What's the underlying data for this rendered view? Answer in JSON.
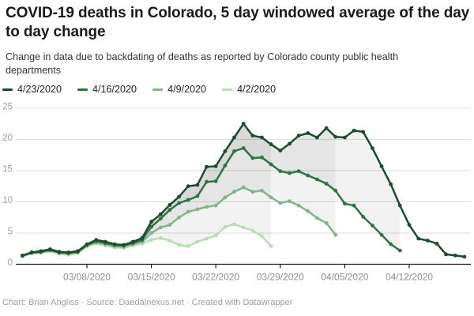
{
  "header": {
    "title": "COVID-19 deaths in Colorado, 5 day windowed average of the day to day change",
    "subtitle": "Change in data due to backdating of deaths as reported by Colorado county public health departments"
  },
  "footer": {
    "credit": "Chart: Brian Angliss · Source: Daedalnexus.net · Created with Datawrapper"
  },
  "chart_data": {
    "type": "line",
    "title": "COVID-19 deaths in Colorado, 5 day windowed average of the day to day change",
    "x_start_date": "03/01/2020",
    "x_step_days": 1,
    "x_ticks": [
      {
        "label": "03/08/2020",
        "day_index": 7
      },
      {
        "label": "03/15/2020",
        "day_index": 14
      },
      {
        "label": "03/22/2020",
        "day_index": 21
      },
      {
        "label": "03/29/2020",
        "day_index": 28
      },
      {
        "label": "04/05/2020",
        "day_index": 35
      },
      {
        "label": "04/12/2020",
        "day_index": 42
      }
    ],
    "y_ticks": [
      0,
      5,
      10,
      15,
      20,
      25
    ],
    "ylim": [
      0,
      25
    ],
    "grid": true,
    "legend_position": "top",
    "band_fill": "rgba(0,0,0,0.05)",
    "axis_color": "#1a1a1a",
    "grid_color": "#dcdcdc",
    "tick_label_color": "#8e8e8e",
    "series": [
      {
        "name": "4/23/2020",
        "color": "#1b4c2d",
        "end_date": "04/18/2020",
        "values": [
          1.4,
          1.9,
          2.1,
          2.4,
          2.0,
          1.9,
          2.1,
          3.2,
          3.9,
          3.6,
          3.2,
          3.1,
          3.6,
          4.2,
          6.8,
          8.0,
          9.5,
          10.8,
          12.5,
          12.7,
          15.6,
          15.7,
          18.1,
          20.3,
          22.5,
          20.6,
          20.3,
          19.2,
          18.2,
          19.3,
          20.6,
          21.0,
          20.3,
          21.8,
          20.4,
          20.3,
          21.4,
          21.2,
          18.6,
          15.7,
          12.8,
          9.4,
          6.3,
          4.1,
          3.8,
          3.3,
          1.6,
          1.4,
          1.2
        ]
      },
      {
        "name": "4/16/2020",
        "color": "#2f7440",
        "end_date": "04/11/2020",
        "values": [
          1.4,
          1.9,
          2.0,
          2.3,
          1.9,
          1.8,
          2.0,
          3.1,
          3.7,
          3.4,
          3.1,
          3.0,
          3.4,
          3.9,
          6.0,
          7.3,
          8.7,
          9.8,
          10.3,
          10.9,
          13.2,
          13.3,
          15.8,
          18.1,
          18.6,
          17.0,
          17.1,
          16.0,
          14.9,
          14.6,
          14.9,
          14.2,
          13.6,
          12.9,
          11.8,
          9.7,
          9.4,
          7.6,
          6.2,
          4.7,
          3.2,
          2.2
        ]
      },
      {
        "name": "4/9/2020",
        "color": "#83b489",
        "end_date": "04/04/2020",
        "values": [
          1.3,
          1.8,
          1.9,
          2.2,
          1.8,
          1.7,
          1.9,
          3.0,
          3.5,
          3.2,
          2.9,
          2.8,
          3.2,
          3.6,
          5.0,
          5.9,
          6.3,
          7.5,
          8.4,
          8.8,
          9.2,
          9.4,
          10.7,
          11.6,
          12.3,
          11.6,
          11.8,
          10.7,
          9.8,
          10.1,
          9.4,
          8.5,
          7.4,
          6.6,
          4.7
        ]
      },
      {
        "name": "4/2/2020",
        "color": "#b9ddb4",
        "end_date": "03/28/2020",
        "values": [
          1.3,
          1.7,
          1.8,
          2.1,
          1.7,
          1.5,
          1.8,
          2.8,
          3.3,
          3.0,
          2.7,
          2.6,
          3.0,
          3.3,
          3.9,
          4.2,
          3.8,
          3.1,
          2.9,
          3.6,
          4.1,
          4.6,
          6.0,
          6.4,
          5.9,
          5.4,
          4.5,
          2.9
        ]
      }
    ]
  }
}
